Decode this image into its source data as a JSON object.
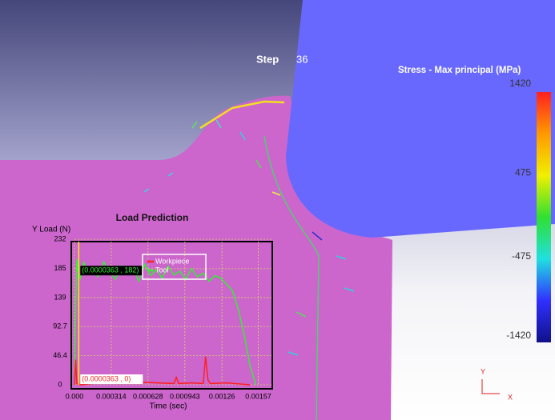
{
  "step": {
    "label": "Step",
    "value": "36"
  },
  "colorbar": {
    "title": "Stress - Max principal (MPa)",
    "lim": [
      -1420,
      1420
    ],
    "ticks": [
      1420,
      475,
      -475,
      -1420
    ],
    "colors": [
      "#ff2020",
      "#ff9900",
      "#f0f000",
      "#30e030",
      "#20e0e0",
      "#3030ff",
      "#10108a"
    ]
  },
  "axes_indicator": {
    "y": "Y",
    "x": "X"
  },
  "chart_data": {
    "type": "line",
    "title": "Load Prediction",
    "y_label": "Y Load (N)",
    "x_label": "Time (sec)",
    "xlim": [
      0,
      0.00169
    ],
    "ylim": [
      0,
      232
    ],
    "xticks": [
      {
        "value": 0,
        "label": "0.000"
      },
      0.000314,
      0.000628,
      0.000943,
      0.00126,
      0.00157
    ],
    "yticks": [
      0,
      46.4,
      92.7,
      139,
      185,
      232
    ],
    "grid": true,
    "legend": "top-center",
    "series": [
      {
        "name": "Workpiece",
        "color": "#ff2020",
        "x": [
          0,
          1e-05,
          2e-05,
          5e-05,
          0.0002,
          0.0004,
          0.0006,
          0.00085,
          0.00087,
          0.00089,
          0.001,
          0.0011,
          0.00112,
          0.00114,
          0.00116,
          0.0013,
          0.0015
        ],
        "values": [
          0,
          40,
          2,
          0,
          3,
          2,
          4,
          2,
          12,
          2,
          3,
          2,
          45,
          8,
          2,
          3,
          0
        ]
      },
      {
        "name": "Tool",
        "color": "#30f030",
        "x": [
          0,
          1e-05,
          2e-05,
          3e-05,
          5e-05,
          8e-05,
          0.00012,
          0.00016,
          0.0002,
          0.00025,
          0.0003,
          0.00035,
          0.0004,
          0.00045,
          0.0005,
          0.00055,
          0.0006,
          0.00065,
          0.0007,
          0.00075,
          0.0008,
          0.00085,
          0.0009,
          0.00095,
          0.001,
          0.00105,
          0.0011,
          0.00115,
          0.0012,
          0.00125,
          0.0013,
          0.00135,
          0.0014,
          0.00145,
          0.0015,
          0.00155
        ],
        "values": [
          0,
          120,
          200,
          182,
          170,
          195,
          178,
          188,
          172,
          196,
          180,
          168,
          190,
          176,
          186,
          165,
          192,
          174,
          183,
          170,
          189,
          175,
          181,
          168,
          185,
          172,
          178,
          165,
          174,
          170,
          160,
          150,
          120,
          80,
          30,
          0
        ]
      }
    ],
    "cursor": {
      "x": 3.63e-05,
      "y": [
        0,
        182
      ],
      "labels": [
        "(0.0000363 , 0)",
        "(0.0000363 , 182)"
      ]
    }
  }
}
